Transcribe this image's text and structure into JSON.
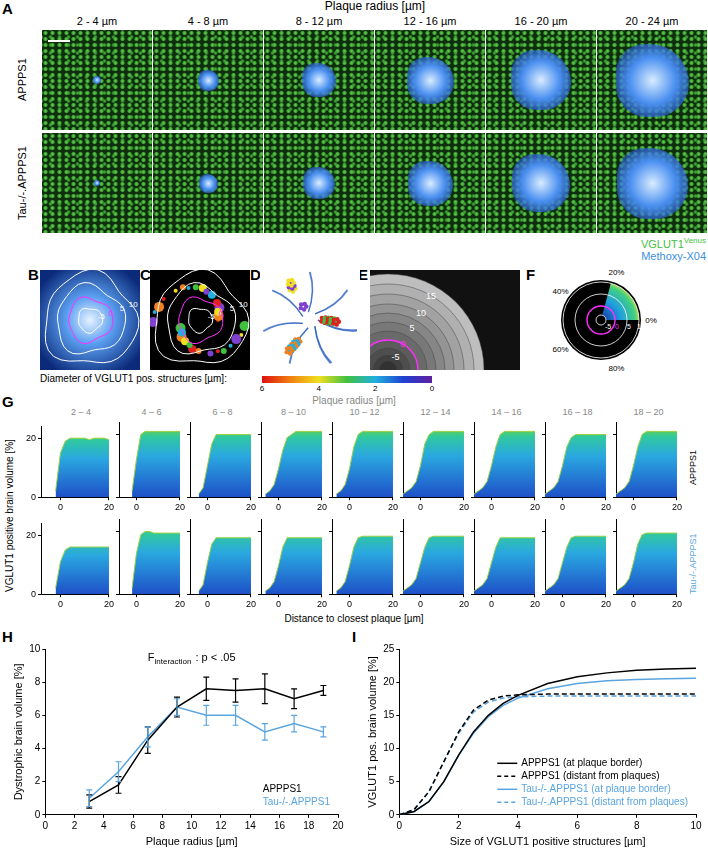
{
  "figure": {
    "panel_labels": [
      "A",
      "B",
      "C",
      "D",
      "E",
      "F",
      "G",
      "H",
      "I"
    ],
    "A": {
      "header": "Plaque radius [µm]",
      "columns": [
        "2 - 4 µm",
        "4 - 8 µm",
        "8 - 12 µm",
        "12 - 16 µm",
        "16 - 20 µm",
        "20 - 24 µm"
      ],
      "rows": [
        "APPPS1",
        "Tau-/-.APPPS1"
      ],
      "channels": [
        {
          "main": "VGLUT1",
          "sup": "Venus",
          "color": "#3fbf3f"
        },
        {
          "main": "Methoxy-X04",
          "color": "#3a8fe0"
        }
      ]
    },
    "B": {
      "contour_labels": [
        "10",
        "5",
        "0",
        "-5"
      ]
    },
    "C": {
      "contour_labels": [
        "10",
        "5",
        "0",
        "-5"
      ]
    },
    "E": {
      "shell_labels": [
        "15",
        "10",
        "5",
        "0",
        "-5"
      ]
    },
    "F": {
      "angle_labels": [
        "0%",
        "20%",
        "40%",
        "60%",
        "80%"
      ],
      "radius_labels": [
        "-5",
        "0",
        "5",
        "10"
      ]
    },
    "colorbar": {
      "label": "Diameter of VGLUT1 pos. structures [µm]:",
      "ticks": [
        6,
        4,
        2,
        0
      ],
      "range": [
        6,
        0
      ]
    },
    "G": {
      "header": "Plaque radius [µm]",
      "xlabel": "Distance to closest plaque [µm]",
      "ylabel": "VGLUT1 positive brain volume [%]",
      "rows": [
        "APPPS1",
        "Tau-/-.APPPS1"
      ],
      "colors": [
        "#000000",
        "#5aa5e0"
      ]
    }
  },
  "chart_data": [
    {
      "type": "area",
      "title": "2 – 4",
      "x": [
        -8,
        -6,
        -4,
        -2,
        0,
        2,
        4,
        6,
        8,
        10,
        12,
        14,
        16,
        18,
        20
      ],
      "values": [
        null,
        null,
        null,
        2,
        15,
        19,
        20,
        20,
        20,
        20,
        19.5,
        20,
        20,
        20,
        19.5
      ],
      "color": "#1e50c8",
      "xlim": [
        -8,
        20
      ],
      "xticks": [
        0,
        20
      ],
      "ylim": [
        0,
        24
      ],
      "yticks": [
        0,
        20
      ],
      "tick_labels": true
    },
    {
      "type": "area",
      "title": "4 – 6",
      "x": [
        -8,
        -6,
        -4,
        -2,
        0,
        2,
        4,
        6,
        8,
        10,
        12,
        14,
        16,
        18,
        20
      ],
      "values": [
        null,
        null,
        null,
        2,
        12,
        20,
        21,
        21,
        21,
        21,
        21,
        21,
        21,
        21,
        21
      ],
      "color": "#1e50c8",
      "xlim": [
        -8,
        20
      ],
      "xticks": [
        0,
        20
      ],
      "ylim": [
        0,
        24
      ],
      "yticks": [
        0,
        20
      ],
      "tick_labels": "x"
    },
    {
      "type": "area",
      "title": "6 – 8",
      "x": [
        -8,
        -6,
        -4,
        -2,
        0,
        2,
        4,
        6,
        8,
        10,
        12,
        14,
        16,
        18,
        20
      ],
      "values": [
        null,
        null,
        1,
        3,
        10,
        17,
        20,
        20,
        20,
        20,
        20,
        20,
        20,
        20,
        20
      ],
      "color": "#1e50c8",
      "xlim": [
        -8,
        20
      ],
      "xticks": [
        0,
        20
      ],
      "ylim": [
        0,
        24
      ],
      "yticks": [
        0,
        20
      ],
      "tick_labels": "x"
    },
    {
      "type": "area",
      "title": "8 – 10",
      "x": [
        -8,
        -6,
        -4,
        -2,
        0,
        2,
        4,
        6,
        8,
        10,
        12,
        14,
        16,
        18,
        20
      ],
      "values": [
        null,
        1,
        2,
        4,
        9,
        15,
        19,
        20,
        21,
        21,
        21,
        21,
        21,
        21,
        21
      ],
      "color": "#1e50c8",
      "xlim": [
        -8,
        20
      ],
      "xticks": [
        0,
        20
      ],
      "ylim": [
        0,
        24
      ],
      "yticks": [
        0,
        20
      ],
      "tick_labels": "x"
    },
    {
      "type": "area",
      "title": "10 – 12",
      "x": [
        -8,
        -6,
        -4,
        -2,
        0,
        2,
        4,
        6,
        8,
        10,
        12,
        14,
        16,
        18,
        20
      ],
      "values": [
        null,
        1,
        2,
        4,
        9,
        16,
        20,
        21,
        21,
        21,
        21,
        21,
        21,
        21,
        21
      ],
      "color": "#1e50c8",
      "xlim": [
        -8,
        20
      ],
      "xticks": [
        0,
        20
      ],
      "ylim": [
        0,
        24
      ],
      "yticks": [
        0,
        20
      ],
      "tick_labels": "x"
    },
    {
      "type": "area",
      "title": "12 – 14",
      "x": [
        -8,
        -6,
        -4,
        -2,
        0,
        2,
        4,
        6,
        8,
        10,
        12,
        14,
        16,
        18,
        20
      ],
      "values": [
        1,
        2,
        3,
        5,
        10,
        17,
        20,
        21,
        21,
        21,
        21,
        21,
        21,
        21,
        21
      ],
      "color": "#1e50c8",
      "xlim": [
        -8,
        20
      ],
      "xticks": [
        0,
        20
      ],
      "ylim": [
        0,
        24
      ],
      "yticks": [
        0,
        20
      ],
      "tick_labels": "x"
    },
    {
      "type": "area",
      "title": "14 – 16",
      "x": [
        -8,
        -6,
        -4,
        -2,
        0,
        2,
        4,
        6,
        8,
        10,
        12,
        14,
        16,
        18,
        20
      ],
      "values": [
        1,
        2,
        3,
        5,
        10,
        16,
        20,
        21,
        21,
        21,
        21,
        21,
        21,
        21,
        21
      ],
      "color": "#1e50c8",
      "xlim": [
        -8,
        20
      ],
      "xticks": [
        0,
        20
      ],
      "ylim": [
        0,
        24
      ],
      "yticks": [
        0,
        20
      ],
      "tick_labels": "x"
    },
    {
      "type": "area",
      "title": "16 – 18",
      "x": [
        -8,
        -6,
        -4,
        -2,
        0,
        2,
        4,
        6,
        8,
        10,
        12,
        14,
        16,
        18,
        20
      ],
      "values": [
        1,
        2,
        3,
        5,
        10,
        16,
        19,
        20,
        20,
        20,
        20,
        20,
        20,
        20,
        20
      ],
      "color": "#1e50c8",
      "xlim": [
        -8,
        20
      ],
      "xticks": [
        0,
        20
      ],
      "ylim": [
        0,
        24
      ],
      "yticks": [
        0,
        20
      ],
      "tick_labels": "x"
    },
    {
      "type": "area",
      "title": "18 – 20",
      "x": [
        -8,
        -6,
        -4,
        -2,
        0,
        2,
        4,
        6,
        8,
        10,
        12,
        14,
        16,
        18,
        20
      ],
      "values": [
        1,
        2,
        3,
        5,
        10,
        16,
        20,
        21,
        21,
        21,
        21,
        21,
        21,
        21,
        21
      ],
      "color": "#1e50c8",
      "xlim": [
        -8,
        20
      ],
      "xticks": [
        0,
        20
      ],
      "ylim": [
        0,
        24
      ],
      "yticks": [
        0,
        20
      ],
      "tick_labels": "x"
    },
    {
      "type": "area",
      "x": [
        -8,
        -6,
        -4,
        -2,
        0,
        2,
        4,
        6,
        8,
        10,
        12,
        14,
        16,
        18,
        20
      ],
      "values": [
        null,
        null,
        null,
        2,
        11,
        15,
        16,
        16,
        16,
        16,
        16,
        16,
        16,
        16,
        16
      ],
      "color": "#1e50c8",
      "xlim": [
        -8,
        20
      ],
      "xticks": [
        0,
        20
      ],
      "ylim": [
        0,
        24
      ],
      "yticks": [
        0,
        20
      ],
      "tick_labels": true
    },
    {
      "type": "area",
      "x": [
        -8,
        -6,
        -4,
        -2,
        0,
        2,
        4,
        6,
        8,
        10,
        12,
        14,
        16,
        18,
        20
      ],
      "values": [
        null,
        null,
        null,
        2,
        13,
        19,
        20,
        20,
        19.5,
        19.5,
        19.5,
        19.5,
        19.5,
        19.5,
        19.5
      ],
      "color": "#1e50c8",
      "xlim": [
        -8,
        20
      ],
      "xticks": [
        0,
        20
      ],
      "ylim": [
        0,
        24
      ],
      "yticks": [
        0,
        20
      ],
      "tick_labels": "x"
    },
    {
      "type": "area",
      "x": [
        -8,
        -6,
        -4,
        -2,
        0,
        2,
        4,
        6,
        8,
        10,
        12,
        14,
        16,
        18,
        20
      ],
      "values": [
        null,
        null,
        1,
        3,
        10,
        16,
        18,
        18,
        18,
        18,
        18,
        18,
        18,
        18,
        18
      ],
      "color": "#1e50c8",
      "xlim": [
        -8,
        20
      ],
      "xticks": [
        0,
        20
      ],
      "ylim": [
        0,
        24
      ],
      "yticks": [
        0,
        20
      ],
      "tick_labels": "x"
    },
    {
      "type": "area",
      "x": [
        -8,
        -6,
        -4,
        -2,
        0,
        2,
        4,
        6,
        8,
        10,
        12,
        14,
        16,
        18,
        20
      ],
      "values": [
        null,
        1,
        2,
        4,
        9,
        15,
        18,
        18,
        18,
        18,
        18,
        18,
        18,
        18,
        18
      ],
      "color": "#1e50c8",
      "xlim": [
        -8,
        20
      ],
      "xticks": [
        0,
        20
      ],
      "ylim": [
        0,
        24
      ],
      "yticks": [
        0,
        20
      ],
      "tick_labels": "x"
    },
    {
      "type": "area",
      "x": [
        -8,
        -6,
        -4,
        -2,
        0,
        2,
        4,
        6,
        8,
        10,
        12,
        14,
        16,
        18,
        20
      ],
      "values": [
        null,
        1,
        2,
        4,
        9,
        15,
        18,
        18.5,
        18.5,
        18.5,
        18.5,
        18.5,
        18.5,
        18.5,
        18.5
      ],
      "color": "#1e50c8",
      "xlim": [
        -8,
        20
      ],
      "xticks": [
        0,
        20
      ],
      "ylim": [
        0,
        24
      ],
      "yticks": [
        0,
        20
      ],
      "tick_labels": "x"
    },
    {
      "type": "area",
      "x": [
        -8,
        -6,
        -4,
        -2,
        0,
        2,
        4,
        6,
        8,
        10,
        12,
        14,
        16,
        18,
        20
      ],
      "values": [
        1,
        2,
        3,
        5,
        10,
        15,
        18,
        18.5,
        18.5,
        18.5,
        18.5,
        18.5,
        18.5,
        18.5,
        18.5
      ],
      "color": "#1e50c8",
      "xlim": [
        -8,
        20
      ],
      "xticks": [
        0,
        20
      ],
      "ylim": [
        0,
        24
      ],
      "yticks": [
        0,
        20
      ],
      "tick_labels": "x"
    },
    {
      "type": "area",
      "x": [
        -8,
        -6,
        -4,
        -2,
        0,
        2,
        4,
        6,
        8,
        10,
        12,
        14,
        16,
        18,
        20
      ],
      "values": [
        1,
        2,
        3,
        5,
        10,
        15,
        18,
        18,
        18,
        18,
        18,
        18,
        18,
        18,
        18
      ],
      "color": "#1e50c8",
      "xlim": [
        -8,
        20
      ],
      "xticks": [
        0,
        20
      ],
      "ylim": [
        0,
        24
      ],
      "yticks": [
        0,
        20
      ],
      "tick_labels": "x"
    },
    {
      "type": "area",
      "x": [
        -8,
        -6,
        -4,
        -2,
        0,
        2,
        4,
        6,
        8,
        10,
        12,
        14,
        16,
        18,
        20
      ],
      "values": [
        1,
        2,
        3,
        5,
        10,
        15,
        18,
        18.5,
        18.5,
        18.5,
        18.5,
        18.5,
        18.5,
        18.5,
        18.5
      ],
      "color": "#1e50c8",
      "xlim": [
        -8,
        20
      ],
      "xticks": [
        0,
        20
      ],
      "ylim": [
        0,
        24
      ],
      "yticks": [
        0,
        20
      ],
      "tick_labels": "x"
    },
    {
      "type": "area",
      "x": [
        -8,
        -6,
        -4,
        -2,
        0,
        2,
        4,
        6,
        8,
        10,
        12,
        14,
        16,
        18,
        20
      ],
      "values": [
        1,
        2,
        3,
        5,
        10,
        16,
        19,
        19.5,
        19.5,
        19.5,
        19.5,
        19.5,
        19.5,
        19.5,
        19.5
      ],
      "color": "#1e50c8",
      "xlim": [
        -8,
        20
      ],
      "xticks": [
        0,
        20
      ],
      "ylim": [
        0,
        24
      ],
      "yticks": [
        0,
        20
      ],
      "tick_labels": "x"
    },
    {
      "type": "line",
      "xlabel": "Plaque radius [µm]",
      "ylabel": "Dystrophic brain volume [%]",
      "xlim": [
        0,
        20
      ],
      "xticks": [
        0,
        2,
        4,
        6,
        8,
        10,
        12,
        14,
        16,
        18,
        20
      ],
      "ylim": [
        0,
        10
      ],
      "yticks": [
        0,
        2,
        4,
        6,
        8,
        10
      ],
      "grid": false,
      "legend": "lower right",
      "annotation": {
        "main": "F",
        "sub": "interaction",
        "text": ": p < .05"
      },
      "x": [
        3,
        5,
        7,
        9,
        11,
        13,
        15,
        17,
        19
      ],
      "series": [
        {
          "name": "APPPS1",
          "color": "#000000",
          "values": [
            0.8,
            1.8,
            4.5,
            6.5,
            7.6,
            7.5,
            7.6,
            7.0,
            7.5
          ],
          "error": [
            0.4,
            0.5,
            0.8,
            0.6,
            0.7,
            0.7,
            0.9,
            0.6,
            0.3
          ]
        },
        {
          "name": "Tau-/-.APPPS1",
          "color": "#5aa5e0",
          "values": [
            1.0,
            2.6,
            4.7,
            6.5,
            6.0,
            6.0,
            5.0,
            5.5,
            5.0
          ],
          "error": [
            0.5,
            0.6,
            0.6,
            0.5,
            0.6,
            0.6,
            0.5,
            0.5,
            0.3
          ]
        }
      ]
    },
    {
      "type": "line",
      "xlabel": "Size of VGLUT1 positive structures [µm]",
      "ylabel": "VGLUT1 pos. brain volume [%]",
      "xlim": [
        0,
        10
      ],
      "xticks": [
        0,
        2,
        4,
        6,
        8,
        10
      ],
      "ylim": [
        0,
        25
      ],
      "yticks": [
        0,
        5,
        10,
        15,
        20,
        25
      ],
      "grid": false,
      "legend": "lower right",
      "x": [
        0,
        0.5,
        1,
        1.5,
        2,
        2.5,
        3,
        3.5,
        4,
        5,
        6,
        7,
        8,
        9,
        10
      ],
      "series": [
        {
          "name": "APPPS1 (at plaque border)",
          "color": "#000000",
          "line_style": "solid",
          "values": [
            0,
            0.5,
            2,
            5,
            9,
            12.5,
            15,
            16.8,
            18,
            19.8,
            20.8,
            21.4,
            21.8,
            22,
            22.1
          ]
        },
        {
          "name": "APPPS1 (distant from plaques)",
          "color": "#000000",
          "line_style": "dashed",
          "values": [
            0,
            0.8,
            3.5,
            8,
            12.5,
            15.8,
            17.3,
            17.9,
            18.1,
            18.2,
            18.2,
            18.2,
            18.2,
            18.2,
            18.2
          ]
        },
        {
          "name": "Tau-/-.APPPS1 (at plaque border)",
          "color": "#5aa5e0",
          "line_style": "solid",
          "values": [
            0,
            0.5,
            2,
            5,
            9,
            12.3,
            14.8,
            16.5,
            17.6,
            19,
            19.8,
            20.2,
            20.4,
            20.5,
            20.6
          ]
        },
        {
          "name": "Tau-/-.APPPS1 (distant from plaques)",
          "color": "#5aa5e0",
          "line_style": "dashed",
          "values": [
            0,
            0.8,
            3.5,
            8,
            12.3,
            15.5,
            17,
            17.6,
            17.8,
            17.9,
            17.9,
            17.9,
            17.9,
            17.9,
            17.9
          ]
        }
      ]
    }
  ]
}
